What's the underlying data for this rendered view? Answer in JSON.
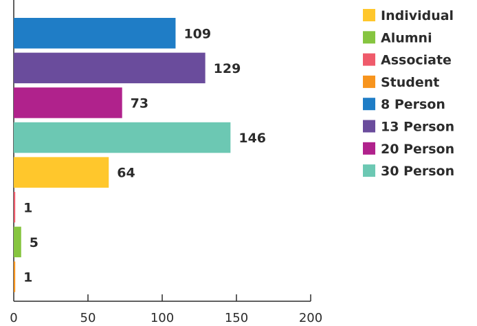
{
  "chart_data": {
    "type": "bar",
    "orientation": "horizontal",
    "categories": [
      "8 Person",
      "13 Person",
      "20 Person",
      "30 Person",
      "Individual",
      "Associate",
      "Alumni",
      "Student"
    ],
    "values": [
      109,
      129,
      73,
      146,
      64,
      1,
      5,
      1
    ],
    "colors": [
      "#1f7dc6",
      "#6a4c9c",
      "#b0228c",
      "#6cc8b3",
      "#ffc72c",
      "#ef5b6b",
      "#86c540",
      "#f7941d"
    ],
    "data_labels": [
      "109",
      "129",
      "73",
      "146",
      "64",
      "1",
      "5",
      "1"
    ],
    "xlim": [
      0,
      200
    ],
    "x_ticks": [
      0,
      50,
      100,
      150,
      200
    ],
    "x_tick_labels": [
      "0",
      "50",
      "100",
      "150",
      "200"
    ],
    "grid": false,
    "legend_position": "top-right",
    "legend": [
      {
        "label": "Individual",
        "color": "#ffc72c"
      },
      {
        "label": "Alumni",
        "color": "#86c540"
      },
      {
        "label": "Associate",
        "color": "#ef5b6b"
      },
      {
        "label": "Student",
        "color": "#f7941d"
      },
      {
        "label": "8 Person",
        "color": "#1f7dc6"
      },
      {
        "label": "13 Person",
        "color": "#6a4c9c"
      },
      {
        "label": "20 Person",
        "color": "#b0228c"
      },
      {
        "label": "30 Person",
        "color": "#6cc8b3"
      }
    ]
  }
}
